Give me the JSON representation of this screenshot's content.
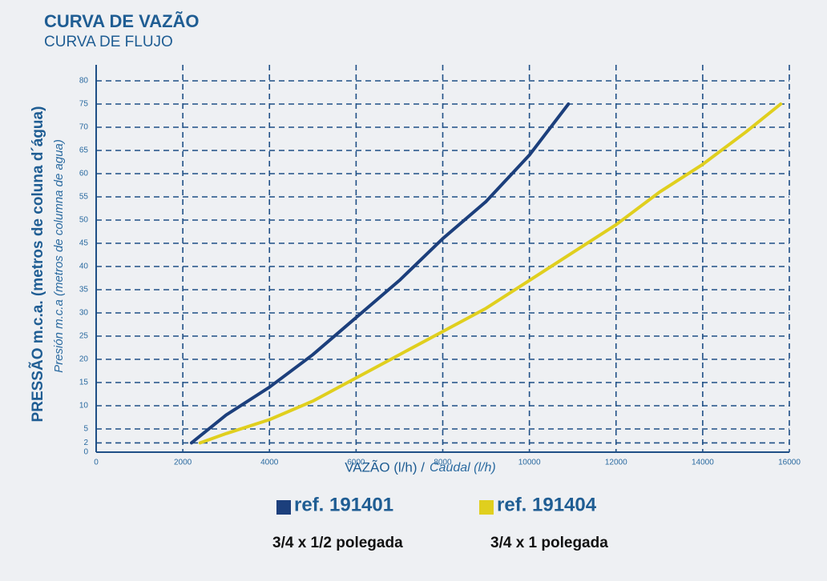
{
  "chart_data": {
    "type": "line",
    "title": "CURVA DE VAZÃO",
    "subtitle": "CURVA DE FLUJO",
    "y_label": "PRESSÃO  m.c.a.  (metros de coluna d´água)",
    "y_label_2": "Presión m.c.a (metros de columna de agua)",
    "x_label": "VAZÃO (l/h) /",
    "x_label_2": "Caudal (l/h)",
    "xlim": [
      0,
      16000
    ],
    "xticks": [
      0,
      2000,
      4000,
      6000,
      8000,
      10000,
      12000,
      14000,
      16000
    ],
    "ylim": [
      0,
      80
    ],
    "yticks": [
      0,
      2,
      5,
      10,
      15,
      20,
      25,
      30,
      35,
      40,
      45,
      50,
      55,
      60,
      65,
      70,
      75,
      80
    ],
    "grid": true,
    "series": [
      {
        "name": "ref. 191401",
        "description": "3/4 x 1/2 polegada",
        "color": "#1c3f7c",
        "x": [
          2200,
          3000,
          4000,
          5000,
          6000,
          7000,
          8000,
          9000,
          10000,
          10900
        ],
        "values": [
          2,
          8,
          14,
          21,
          29,
          37,
          46,
          54,
          64,
          75
        ]
      },
      {
        "name": "ref. 191404",
        "description": "3/4 x 1 polegada",
        "color": "#e0cf1e",
        "x": [
          2400,
          3000,
          4000,
          5000,
          6000,
          7000,
          8000,
          9000,
          10000,
          11000,
          12000,
          13000,
          14000,
          15000,
          15800
        ],
        "values": [
          2,
          4,
          7,
          11,
          16,
          21,
          26,
          31,
          37,
          43,
          49,
          56,
          62,
          69,
          75
        ]
      }
    ]
  }
}
